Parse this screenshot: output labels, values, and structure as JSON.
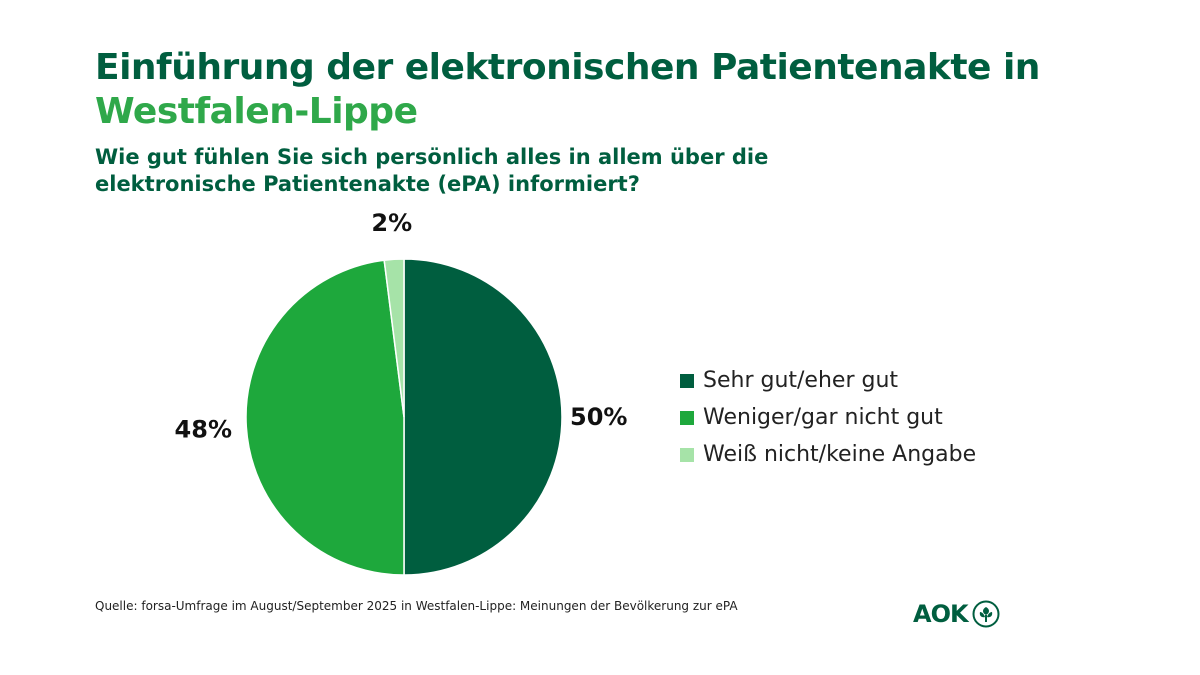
{
  "title": {
    "line1": "Einführung der elektronischen Patientenakte in",
    "line2": "Westfalen-Lippe"
  },
  "subtitle": "Wie gut fühlen Sie sich persönlich alles in allem über die elektronische Patientenakte (ePA) informiert?",
  "source": "Quelle: forsa-Umfrage im August/September 2025 in Westfalen-Lippe: Meinungen der Bevölkerung zur ePA",
  "logo": {
    "text": "AOK",
    "icon": "aok-tree-icon"
  },
  "colors": {
    "dark_green": "#005e3f",
    "mid_green": "#1ea83c",
    "light_green": "#a6e3a8",
    "title_accent": "#2fa84a"
  },
  "chart_data": {
    "type": "pie",
    "start_angle_deg": 0,
    "direction": "clockwise",
    "slices": [
      {
        "label": "Sehr gut/eher gut",
        "value": 50,
        "display": "50%",
        "color": "#005e3f"
      },
      {
        "label": "Weniger/gar nicht gut",
        "value": 48,
        "display": "48%",
        "color": "#1ea83c"
      },
      {
        "label": "Weiß nicht/keine Angabe",
        "value": 2,
        "display": "2%",
        "color": "#a6e3a8"
      }
    ],
    "legend_position": "right"
  }
}
